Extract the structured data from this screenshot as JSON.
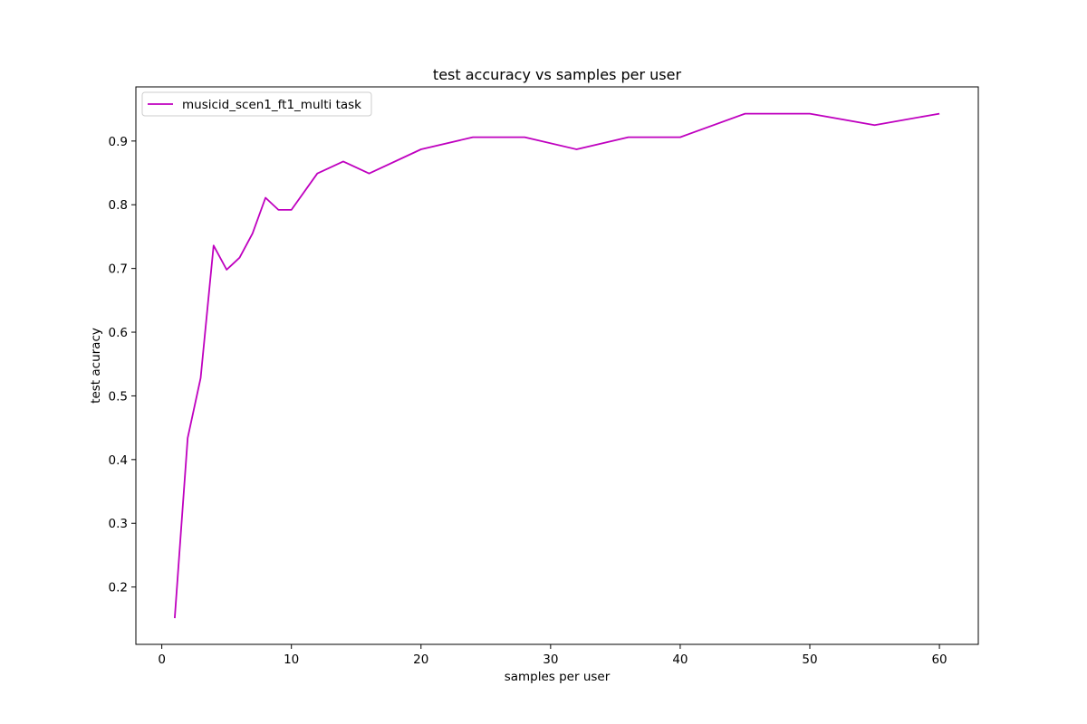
{
  "chart_data": {
    "type": "line",
    "title": "test accuracy vs samples per user",
    "xlabel": "samples per user",
    "ylabel": "test acuracy",
    "xlim": [
      -2,
      63
    ],
    "ylim": [
      0.11,
      0.985
    ],
    "xticks": [
      0,
      10,
      20,
      30,
      40,
      50,
      60
    ],
    "yticks": [
      0.2,
      0.3,
      0.4,
      0.5,
      0.6,
      0.7,
      0.8,
      0.9
    ],
    "grid": false,
    "legend_position": "top-left",
    "series": [
      {
        "name": "musicid_scen1_ft1_multi task",
        "color": "#bf00bf",
        "x": [
          1,
          2,
          3,
          4,
          5,
          6,
          7,
          8,
          9,
          10,
          12,
          14,
          16,
          20,
          24,
          28,
          32,
          36,
          40,
          45,
          50,
          55,
          60
        ],
        "y": [
          0.151,
          0.434,
          0.528,
          0.736,
          0.698,
          0.717,
          0.755,
          0.811,
          0.792,
          0.792,
          0.849,
          0.868,
          0.849,
          0.887,
          0.906,
          0.906,
          0.887,
          0.906,
          0.906,
          0.943,
          0.943,
          0.925,
          0.943
        ]
      }
    ]
  }
}
